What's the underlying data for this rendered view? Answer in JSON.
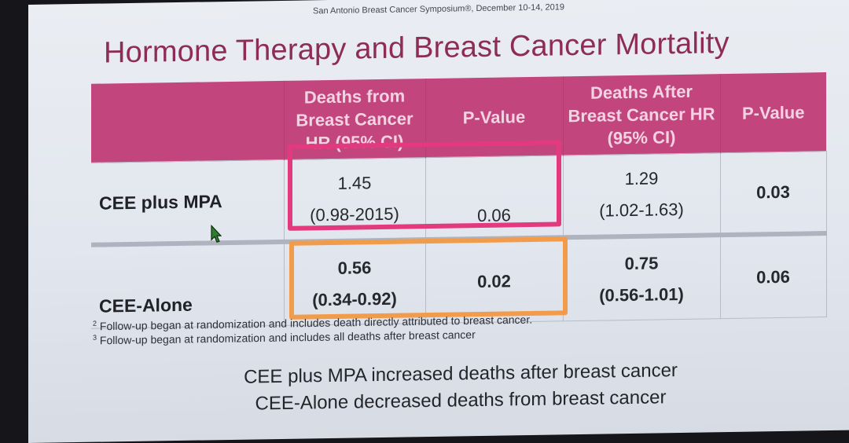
{
  "slide": {
    "conference": "San Antonio Breast Cancer Symposium®, December 10-14, 2019",
    "title": "Hormone Therapy and Breast Cancer Mortality"
  },
  "table": {
    "headers": [
      "",
      "Deaths from Breast Cancer HR (95% CI)",
      "P-Value",
      "Deaths After Breast Cancer HR (95% CI)",
      "P-Value"
    ],
    "rows": [
      {
        "label": "CEE plus MPA",
        "hr1": "1.45",
        "ci1": "(0.98-2015)",
        "p1": "0.06",
        "hr2": "1.29",
        "ci2": "(1.02-1.63)",
        "p2": "0.03"
      },
      {
        "label": "CEE-Alone",
        "hr1": "0.56",
        "ci1": "(0.34-0.92)",
        "p1": "0.02",
        "hr2": "0.75",
        "ci2": "(0.56-1.01)",
        "p2": "0.06"
      }
    ]
  },
  "footnotes": [
    {
      "num": "2",
      "text": "Follow-up began at randomization and includes death directly attributed to breast cancer."
    },
    {
      "num": "3",
      "text": "Follow-up began at randomization and includes all deaths after breast cancer"
    }
  ],
  "conclusions": [
    "CEE plus MPA increased deaths after breast cancer",
    "CEE-Alone decreased deaths from breast cancer"
  ],
  "colors": {
    "header_bg": "#c2457e",
    "title": "#8c2c57",
    "highlight_pink": "#e2397f",
    "highlight_orange": "#f29b4a",
    "cursor": "#2f7d32"
  }
}
